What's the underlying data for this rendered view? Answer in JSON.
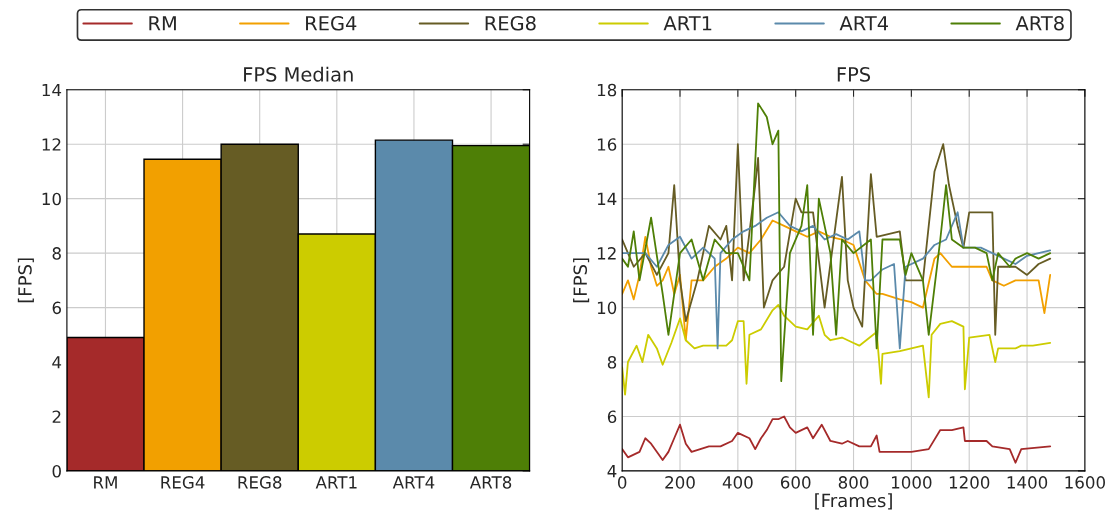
{
  "chart_data": [
    {
      "type": "bar",
      "title": "FPS Median",
      "ylabel": "[FPS]",
      "categories": [
        "RM",
        "REG4",
        "REG8",
        "ART1",
        "ART4",
        "ART8"
      ],
      "values": [
        4.9,
        11.45,
        12.0,
        8.7,
        12.15,
        11.95
      ],
      "colors": [
        "#a52a2a",
        "#f2a000",
        "#665c24",
        "#cccc00",
        "#5b8aab",
        "#4e7f06"
      ],
      "ylim": [
        0,
        14
      ],
      "yticks": [
        0,
        2,
        4,
        6,
        8,
        10,
        12,
        14
      ],
      "grid": true
    },
    {
      "type": "line",
      "title": "FPS",
      "xlabel": "[Frames]",
      "ylabel": "[FPS]",
      "xlim": [
        0,
        1600
      ],
      "xticks": [
        0,
        200,
        400,
        600,
        800,
        1000,
        1200,
        1400,
        1600
      ],
      "ylim": [
        4,
        18
      ],
      "yticks": [
        4,
        6,
        8,
        10,
        12,
        14,
        16,
        18
      ],
      "grid": true,
      "legend": "top",
      "marker": "none",
      "line_style": "solid",
      "series": [
        {
          "name": "RM",
          "color": "#a52a2a",
          "x": [
            0,
            20,
            60,
            80,
            100,
            140,
            160,
            180,
            200,
            220,
            240,
            300,
            340,
            380,
            400,
            440,
            460,
            480,
            500,
            520,
            540,
            560,
            580,
            600,
            640,
            660,
            690,
            720,
            760,
            780,
            820,
            860,
            880,
            890,
            940,
            1000,
            1060,
            1100,
            1140,
            1180,
            1185,
            1260,
            1280,
            1340,
            1360,
            1380,
            1480
          ],
          "values": [
            4.8,
            4.5,
            4.7,
            5.2,
            5.0,
            4.4,
            4.7,
            5.2,
            5.7,
            5.0,
            4.7,
            4.9,
            4.9,
            5.1,
            5.4,
            5.2,
            4.8,
            5.2,
            5.5,
            5.9,
            5.9,
            6.0,
            5.6,
            5.4,
            5.6,
            5.2,
            5.7,
            5.1,
            5.0,
            5.1,
            4.9,
            4.9,
            5.3,
            4.7,
            4.7,
            4.7,
            4.8,
            5.5,
            5.5,
            5.6,
            5.1,
            5.1,
            4.9,
            4.8,
            4.3,
            4.8,
            4.9
          ]
        },
        {
          "name": "REG4",
          "color": "#f2a000",
          "x": [
            0,
            20,
            40,
            60,
            80,
            100,
            120,
            140,
            160,
            180,
            200,
            220,
            240,
            280,
            320,
            360,
            400,
            440,
            480,
            520,
            560,
            600,
            640,
            680,
            720,
            760,
            800,
            840,
            880,
            900,
            960,
            1000,
            1040,
            1080,
            1100,
            1140,
            1180,
            1200,
            1260,
            1280,
            1320,
            1360,
            1400,
            1440,
            1460,
            1480
          ],
          "values": [
            10.5,
            11.0,
            10.3,
            11.2,
            12.6,
            11.5,
            10.8,
            11.0,
            11.5,
            10.5,
            11.2,
            8.8,
            11.0,
            11.0,
            11.5,
            11.8,
            12.2,
            12.0,
            12.5,
            13.2,
            13.0,
            12.8,
            12.6,
            12.8,
            12.6,
            12.5,
            12.3,
            11.0,
            10.5,
            10.5,
            10.3,
            10.2,
            10.0,
            11.8,
            12.0,
            11.5,
            11.5,
            11.5,
            11.5,
            11.0,
            10.8,
            11.0,
            11.0,
            11.0,
            9.8,
            11.2
          ]
        },
        {
          "name": "REG8",
          "color": "#665c24",
          "x": [
            0,
            40,
            80,
            120,
            160,
            180,
            200,
            220,
            260,
            300,
            340,
            360,
            380,
            400,
            420,
            460,
            470,
            490,
            520,
            560,
            600,
            620,
            660,
            700,
            760,
            780,
            800,
            830,
            860,
            880,
            960,
            980,
            1040,
            1080,
            1110,
            1130,
            1160,
            1180,
            1200,
            1280,
            1290,
            1300,
            1360,
            1400,
            1440,
            1480
          ],
          "values": [
            12.5,
            11.5,
            12.0,
            11.2,
            12.0,
            14.5,
            11.0,
            9.5,
            11.0,
            13.0,
            12.5,
            13.0,
            11.0,
            16.0,
            11.0,
            14.5,
            15.5,
            10.0,
            11.0,
            11.5,
            14.0,
            13.5,
            13.5,
            10.0,
            14.8,
            11.0,
            10.0,
            9.3,
            14.9,
            12.6,
            12.8,
            11.0,
            11.0,
            15.0,
            16.0,
            14.5,
            13.0,
            12.2,
            13.5,
            13.5,
            9.0,
            11.5,
            11.5,
            11.2,
            11.6,
            11.8
          ]
        },
        {
          "name": "ART1",
          "color": "#cccc00",
          "x": [
            0,
            10,
            20,
            50,
            70,
            90,
            120,
            140,
            170,
            200,
            220,
            250,
            280,
            320,
            360,
            380,
            400,
            420,
            430,
            440,
            480,
            520,
            540,
            560,
            580,
            600,
            640,
            680,
            700,
            720,
            760,
            800,
            820,
            880,
            895,
            900,
            960,
            1000,
            1040,
            1060,
            1070,
            1100,
            1140,
            1180,
            1185,
            1200,
            1270,
            1290,
            1300,
            1360,
            1380,
            1420,
            1480
          ],
          "values": [
            7.8,
            6.8,
            8.0,
            8.6,
            8.0,
            9.0,
            8.5,
            7.9,
            8.7,
            9.6,
            8.8,
            8.5,
            8.6,
            8.6,
            8.6,
            8.8,
            9.5,
            9.5,
            7.2,
            9.0,
            9.2,
            9.9,
            10.1,
            9.7,
            9.5,
            9.3,
            9.2,
            9.7,
            9.0,
            8.8,
            8.9,
            8.7,
            8.6,
            9.1,
            7.2,
            8.3,
            8.4,
            8.5,
            8.6,
            6.7,
            9.0,
            9.4,
            9.5,
            9.3,
            7.0,
            8.9,
            9.0,
            8.0,
            8.5,
            8.5,
            8.6,
            8.6,
            8.7
          ]
        },
        {
          "name": "ART4",
          "color": "#5b8aab",
          "x": [
            0,
            40,
            80,
            120,
            160,
            200,
            240,
            280,
            320,
            330,
            340,
            380,
            420,
            460,
            500,
            540,
            580,
            620,
            660,
            700,
            740,
            780,
            820,
            840,
            860,
            900,
            940,
            960,
            980,
            1040,
            1080,
            1120,
            1160,
            1180,
            1240,
            1280,
            1320,
            1360,
            1400,
            1440,
            1480
          ],
          "values": [
            12.0,
            12.0,
            12.0,
            11.5,
            12.3,
            12.6,
            11.8,
            12.2,
            11.8,
            8.5,
            12.0,
            12.5,
            12.8,
            13.0,
            13.3,
            13.5,
            13.0,
            12.8,
            13.0,
            12.5,
            12.7,
            12.5,
            12.8,
            11.0,
            11.0,
            11.4,
            11.6,
            8.5,
            11.5,
            11.8,
            12.3,
            12.5,
            13.5,
            12.2,
            12.2,
            12.0,
            11.8,
            11.6,
            11.9,
            12.0,
            12.1
          ]
        },
        {
          "name": "ART8",
          "color": "#4e7f06",
          "x": [
            0,
            20,
            40,
            60,
            100,
            140,
            160,
            200,
            240,
            280,
            320,
            360,
            400,
            440,
            470,
            500,
            520,
            540,
            550,
            580,
            620,
            640,
            660,
            680,
            720,
            740,
            760,
            800,
            860,
            880,
            900,
            960,
            980,
            1000,
            1040,
            1060,
            1100,
            1120,
            1140,
            1180,
            1220,
            1260,
            1280,
            1300,
            1340,
            1360,
            1400,
            1440,
            1480
          ],
          "values": [
            11.8,
            11.5,
            12.8,
            11.0,
            13.3,
            10.5,
            9.0,
            12.0,
            12.5,
            11.0,
            12.5,
            12.0,
            12.0,
            11.0,
            17.5,
            17.0,
            16.0,
            16.5,
            7.3,
            12.0,
            13.0,
            14.5,
            9.0,
            14.0,
            12.0,
            9.0,
            12.5,
            12.0,
            12.5,
            8.5,
            12.5,
            12.5,
            11.2,
            12.0,
            11.0,
            9.0,
            12.5,
            14.5,
            12.5,
            12.2,
            12.2,
            12.0,
            11.0,
            12.0,
            11.5,
            11.8,
            12.0,
            11.8,
            12.0
          ]
        }
      ]
    }
  ]
}
